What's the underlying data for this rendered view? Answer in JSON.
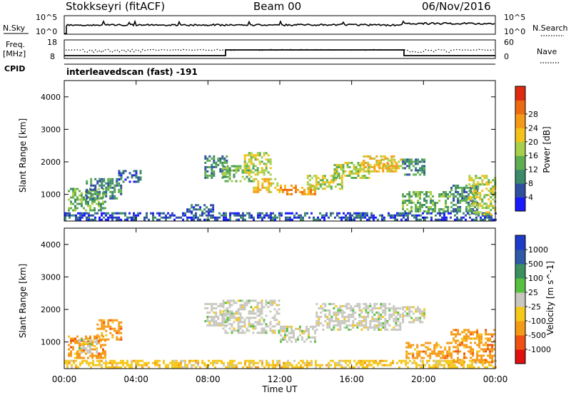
{
  "header": {
    "station": "Stokkseyri (fitACF)",
    "beam": "Beam 00",
    "date": "06/Nov/2016"
  },
  "strip_labels": {
    "nsky": "N.Sky",
    "nsearch": "N.Search",
    "freq_line1": "Freq.",
    "freq_line2": "[MHz]",
    "nave": "Nave",
    "cpid": "CPID",
    "cpid_value": "interleavedscan (fast) -191",
    "noise_left_ticks": [
      "10^5",
      "10^0"
    ],
    "noise_right_ticks": [
      "10^5",
      "10^0"
    ],
    "freq_left_ticks": [
      "18",
      "8"
    ],
    "nave_right_ticks": [
      "60",
      "0"
    ]
  },
  "colors": {
    "power": [
      "#1a1aff",
      "#2f4fa0",
      "#3c8a6a",
      "#5fae4f",
      "#a9d04a",
      "#f3c21b",
      "#f59a16",
      "#ee6a12",
      "#de2a10"
    ],
    "velocity": [
      "#e01010",
      "#f05012",
      "#f59a16",
      "#f5c81a",
      "#c8c8c0",
      "#58c040",
      "#3c9060",
      "#2e5aa8",
      "#1e3cc8"
    ]
  },
  "chart_data": [
    {
      "type": "heatmap",
      "title": "",
      "xlabel": "",
      "ylabel": "Slant Range [km]",
      "colorbar_label": "Power [dB]",
      "colorbar_ticks": [
        "4",
        "8",
        "12",
        "16",
        "20",
        "24",
        "28"
      ],
      "xlim": [
        0,
        24
      ],
      "ylim": [
        180,
        4500
      ],
      "y_ticks": [
        "1000",
        "2000",
        "3000",
        "4000"
      ],
      "x_ticks": [],
      "echo_regions": [
        {
          "x0": 0.2,
          "x1": 2.3,
          "y0": 500,
          "y1": 1200,
          "power": 14
        },
        {
          "x0": 1.2,
          "x1": 3.2,
          "y0": 900,
          "y1": 1500,
          "power": 10
        },
        {
          "x0": 3.0,
          "x1": 4.2,
          "y0": 1400,
          "y1": 1750,
          "power": 8
        },
        {
          "x0": 0.0,
          "x1": 24.0,
          "y0": 200,
          "y1": 450,
          "power": 6
        },
        {
          "x0": 6.8,
          "x1": 8.3,
          "y0": 450,
          "y1": 700,
          "power": 7
        },
        {
          "x0": 7.8,
          "x1": 9.0,
          "y0": 1500,
          "y1": 2200,
          "power": 12
        },
        {
          "x0": 8.8,
          "x1": 10.5,
          "y0": 1400,
          "y1": 1900,
          "power": 15
        },
        {
          "x0": 10.0,
          "x1": 11.5,
          "y0": 1600,
          "y1": 2300,
          "power": 18
        },
        {
          "x0": 10.5,
          "x1": 12.0,
          "y0": 1100,
          "y1": 1500,
          "power": 22
        },
        {
          "x0": 12.0,
          "x1": 14.0,
          "y0": 1000,
          "y1": 1300,
          "power": 27
        },
        {
          "x0": 13.5,
          "x1": 15.5,
          "y0": 1200,
          "y1": 1600,
          "power": 20
        },
        {
          "x0": 15.0,
          "x1": 17.0,
          "y0": 1500,
          "y1": 2000,
          "power": 18
        },
        {
          "x0": 16.5,
          "x1": 18.5,
          "y0": 1700,
          "y1": 2200,
          "power": 22
        },
        {
          "x0": 17.5,
          "x1": 18.7,
          "y0": 1800,
          "y1": 2100,
          "power": 25
        },
        {
          "x0": 18.8,
          "x1": 20.0,
          "y0": 1600,
          "y1": 2100,
          "power": 12
        },
        {
          "x0": 18.8,
          "x1": 21.5,
          "y0": 500,
          "y1": 1100,
          "power": 16
        },
        {
          "x0": 21.5,
          "x1": 23.0,
          "y0": 500,
          "y1": 1300,
          "power": 12
        },
        {
          "x0": 22.5,
          "x1": 24.0,
          "y0": 400,
          "y1": 1600,
          "power": 20
        }
      ]
    },
    {
      "type": "heatmap",
      "title": "",
      "xlabel": "Time UT",
      "ylabel": "Slant Range [km]",
      "colorbar_label": "Velocity [m s^-1]",
      "colorbar_ticks": [
        "-1000",
        "-500",
        "-100",
        "-25",
        "25",
        "100",
        "500",
        "1000"
      ],
      "xlim": [
        0,
        24
      ],
      "ylim": [
        180,
        4500
      ],
      "y_ticks": [
        "1000",
        "2000",
        "3000",
        "4000"
      ],
      "x_ticks": [
        "00:00",
        "04:00",
        "08:00",
        "12:00",
        "16:00",
        "20:00",
        "00:00"
      ],
      "echo_regions": [
        {
          "x0": 0.2,
          "x1": 2.3,
          "y0": 500,
          "y1": 1200,
          "velocity": -100
        },
        {
          "x0": 0.8,
          "x1": 1.8,
          "y0": 700,
          "y1": 1100,
          "velocity": 0
        },
        {
          "x0": 1.8,
          "x1": 3.2,
          "y0": 1100,
          "y1": 1700,
          "velocity": -200
        },
        {
          "x0": 0.0,
          "x1": 24.0,
          "y0": 200,
          "y1": 450,
          "velocity": -60
        },
        {
          "x0": 7.8,
          "x1": 9.0,
          "y0": 1500,
          "y1": 2200,
          "velocity": 0
        },
        {
          "x0": 8.8,
          "x1": 12.0,
          "y0": 1300,
          "y1": 2300,
          "velocity": 0
        },
        {
          "x0": 12.0,
          "x1": 14.0,
          "y0": 1000,
          "y1": 1500,
          "velocity": 0
        },
        {
          "x0": 14.0,
          "x1": 18.7,
          "y0": 1400,
          "y1": 2200,
          "velocity": 0
        },
        {
          "x0": 18.8,
          "x1": 20.0,
          "y0": 1600,
          "y1": 2100,
          "velocity": 0
        },
        {
          "x0": 19.0,
          "x1": 21.5,
          "y0": 500,
          "y1": 1000,
          "velocity": -150
        },
        {
          "x0": 21.5,
          "x1": 24.0,
          "y0": 400,
          "y1": 1400,
          "velocity": -300
        }
      ]
    }
  ]
}
